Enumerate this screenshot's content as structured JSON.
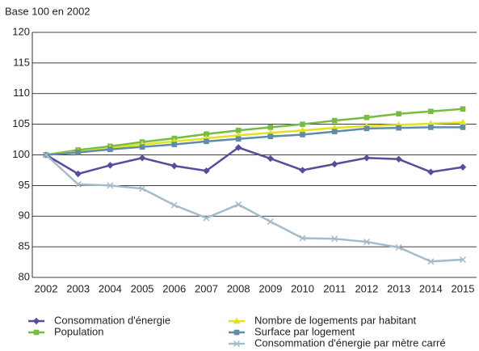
{
  "chart_data": {
    "type": "line",
    "y_label": "Base 100 en 2002",
    "categories": [
      "2002",
      "2003",
      "2004",
      "2005",
      "2006",
      "2007",
      "2008",
      "2009",
      "2010",
      "2011",
      "2012",
      "2013",
      "2014",
      "2015"
    ],
    "ylim": [
      80,
      120
    ],
    "yticks": [
      80,
      85,
      90,
      95,
      100,
      105,
      110,
      115,
      120
    ],
    "grid": true,
    "series": [
      {
        "name": "Consommation d'énergie",
        "color": "#5a4b9c",
        "marker": "diamond",
        "values": [
          100,
          96.9,
          98.3,
          99.5,
          98.2,
          97.4,
          101.2,
          99.4,
          97.5,
          98.5,
          99.5,
          99.3,
          97.2,
          98.0
        ]
      },
      {
        "name": "Population",
        "color": "#76bc43",
        "marker": "square",
        "values": [
          100,
          100.8,
          101.4,
          102.1,
          102.7,
          103.4,
          104.0,
          104.5,
          105.0,
          105.6,
          106.1,
          106.7,
          107.1,
          107.5
        ]
      },
      {
        "name": "Nombre de logements par habitant",
        "color": "#e3e31c",
        "marker": "triangle",
        "values": [
          100,
          100.5,
          101.1,
          101.7,
          102.2,
          102.7,
          103.2,
          103.6,
          104.0,
          104.4,
          104.7,
          104.9,
          105.1,
          105.3
        ]
      },
      {
        "name": "Surface par logement",
        "color": "#5f8cab",
        "marker": "square",
        "values": [
          100,
          100.4,
          100.9,
          101.3,
          101.7,
          102.2,
          102.6,
          103.0,
          103.3,
          103.8,
          104.3,
          104.4,
          104.5,
          104.5
        ]
      },
      {
        "name": "Consommation d'énergie par mètre carré",
        "color": "#a2bccb",
        "marker": "cross",
        "values": [
          100,
          95.2,
          95.0,
          94.5,
          91.8,
          89.7,
          91.9,
          89.1,
          86.4,
          86.3,
          85.8,
          84.9,
          82.6,
          82.9
        ]
      }
    ]
  }
}
